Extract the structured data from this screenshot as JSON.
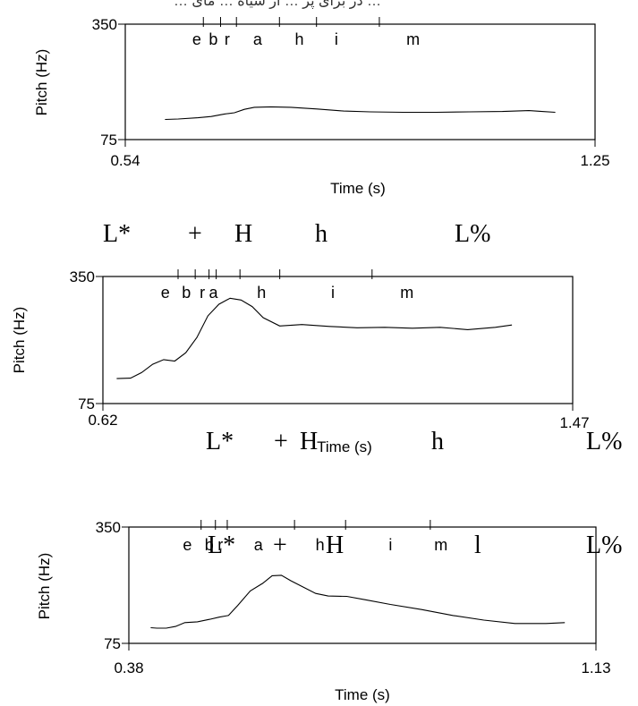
{
  "header_text": "… در برای پر … از سیاه … مای …",
  "chart_data": [
    {
      "type": "line",
      "xlabel": "Time (s)",
      "ylabel": "Pitch (Hz)",
      "xlim": [
        0.54,
        1.25
      ],
      "ylim": [
        75,
        350
      ],
      "x_tick_labels": [
        "0.54",
        "1.25"
      ],
      "y_tick_labels": [
        "350",
        "75"
      ],
      "segments": [
        {
          "label": "e",
          "t": 0.648
        },
        {
          "label": "b",
          "t": 0.673
        },
        {
          "label": "r",
          "t": 0.694
        },
        {
          "label": "a",
          "t": 0.74
        },
        {
          "label": "h",
          "t": 0.803
        },
        {
          "label": "i",
          "t": 0.859
        },
        {
          "label": "m",
          "t": 0.975
        }
      ],
      "segment_boundaries": [
        0.658,
        0.684,
        0.708,
        0.773,
        0.829,
        0.924
      ],
      "tones": [],
      "series": [
        {
          "x": [
            0.6,
            0.62,
            0.65,
            0.67,
            0.69,
            0.705,
            0.72,
            0.735,
            0.76,
            0.79,
            0.83,
            0.87,
            0.91,
            0.96,
            1.01,
            1.06,
            1.11,
            1.15,
            1.17,
            1.19
          ],
          "y": [
            123,
            124,
            127,
            130,
            136,
            139,
            147,
            152,
            153,
            152,
            148,
            143,
            141,
            140,
            140,
            141,
            142,
            144,
            142,
            140
          ]
        }
      ]
    },
    {
      "type": "line",
      "xlabel": "Time (s)",
      "ylabel": "Pitch (Hz)",
      "xlim": [
        0.62,
        1.47
      ],
      "ylim": [
        75,
        350
      ],
      "x_tick_labels": [
        "0.62",
        "1.47"
      ],
      "y_tick_labels": [
        "350",
        "75"
      ],
      "segments": [
        {
          "label": "e",
          "t": 0.733
        },
        {
          "label": "b",
          "t": 0.771
        },
        {
          "label": "r",
          "t": 0.8
        },
        {
          "label": "a",
          "t": 0.82
        },
        {
          "label": "h",
          "t": 0.907
        },
        {
          "label": "i",
          "t": 1.036
        },
        {
          "label": "m",
          "t": 1.17
        }
      ],
      "segment_boundaries": [
        0.756,
        0.787,
        0.812,
        0.825,
        0.868,
        0.94,
        1.107
      ],
      "tones": [
        "L*",
        "+",
        "H",
        "h",
        "L%"
      ],
      "series": [
        {
          "x": [
            0.645,
            0.67,
            0.69,
            0.71,
            0.73,
            0.75,
            0.77,
            0.79,
            0.81,
            0.83,
            0.85,
            0.87,
            0.89,
            0.91,
            0.94,
            0.98,
            1.03,
            1.08,
            1.13,
            1.18,
            1.23,
            1.28,
            1.33,
            1.36
          ],
          "y": [
            129,
            130,
            142,
            160,
            170,
            167,
            185,
            218,
            265,
            290,
            303,
            299,
            285,
            261,
            243,
            246,
            242,
            239,
            240,
            238,
            240,
            235,
            240,
            245
          ]
        }
      ]
    },
    {
      "type": "line",
      "xlabel": "Time (s)",
      "ylabel": "Pitch (Hz)",
      "xlim": [
        0.38,
        1.13
      ],
      "ylim": [
        75,
        350
      ],
      "x_tick_labels": [
        "0.38",
        "1.13"
      ],
      "y_tick_labels": [
        "350",
        "75"
      ],
      "segments": [
        {
          "label": "e",
          "t": 0.474
        },
        {
          "label": "b",
          "t": 0.509
        },
        {
          "label": "r",
          "t": 0.527
        },
        {
          "label": "a",
          "t": 0.588
        },
        {
          "label": "h",
          "t": 0.687
        },
        {
          "label": "i",
          "t": 0.8
        },
        {
          "label": "m",
          "t": 0.881
        }
      ],
      "segment_boundaries": [
        0.496,
        0.519,
        0.538,
        0.646,
        0.728,
        0.864
      ],
      "tones": [
        "L*",
        "+",
        "H",
        "l",
        "L%"
      ],
      "series": [
        {
          "x": [
            0.415,
            0.425,
            0.44,
            0.455,
            0.47,
            0.49,
            0.51,
            0.525,
            0.54,
            0.555,
            0.575,
            0.595,
            0.61,
            0.625,
            0.64,
            0.66,
            0.68,
            0.7,
            0.73,
            0.76,
            0.8,
            0.85,
            0.9,
            0.95,
            1.0,
            1.05,
            1.08
          ],
          "y": [
            112,
            111,
            111,
            115,
            124,
            126,
            132,
            137,
            141,
            165,
            199,
            217,
            235,
            236,
            223,
            208,
            193,
            187,
            186,
            178,
            167,
            155,
            141,
            130,
            122,
            122,
            124
          ]
        }
      ]
    }
  ]
}
